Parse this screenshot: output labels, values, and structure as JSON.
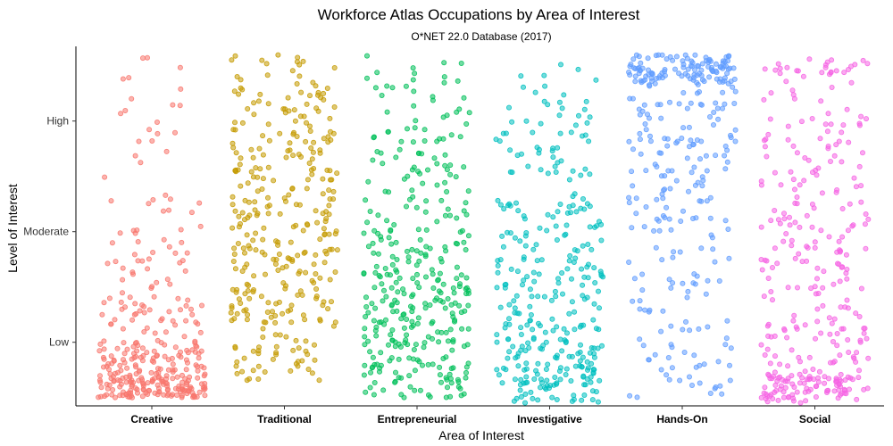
{
  "chart_data": {
    "type": "scatter",
    "subtype": "jitter-strip",
    "title": "Workforce Atlas Occupations by Area of Interest",
    "subtitle": "O*NET 22.0 Database (2017)",
    "xlabel": "Area of Interest",
    "ylabel": "Level of Interest",
    "categories": [
      "Creative",
      "Traditional",
      "Entrepreneurial",
      "Investigative",
      "Hands-On",
      "Social"
    ],
    "y_ticks": [
      {
        "label": "Low",
        "value": 2
      },
      {
        "label": "Moderate",
        "value": 4
      },
      {
        "label": "High",
        "value": 6
      }
    ],
    "ylim": [
      0.85,
      7.35
    ],
    "grid": false,
    "legend": "none",
    "colors": [
      "#F8766D",
      "#C49A00",
      "#00C05A",
      "#00C0C0",
      "#619CFF",
      "#F564E3"
    ],
    "series": [
      {
        "category": "Creative",
        "approx_point_count": 330,
        "density": [
          [
            1.0,
            1.4,
            0.4
          ],
          [
            1.4,
            2.0,
            0.27
          ],
          [
            2.0,
            2.8,
            0.13
          ],
          [
            2.8,
            4.2,
            0.11
          ],
          [
            4.2,
            7.2,
            0.09
          ]
        ]
      },
      {
        "category": "Traditional",
        "approx_point_count": 330,
        "density": [
          [
            1.3,
            2.4,
            0.15
          ],
          [
            2.4,
            3.4,
            0.2
          ],
          [
            3.4,
            4.4,
            0.22
          ],
          [
            4.4,
            5.8,
            0.25
          ],
          [
            5.8,
            7.2,
            0.18
          ]
        ]
      },
      {
        "category": "Entrepreneurial",
        "approx_point_count": 350,
        "density": [
          [
            1.0,
            2.0,
            0.23
          ],
          [
            2.0,
            3.3,
            0.35
          ],
          [
            3.3,
            4.5,
            0.18
          ],
          [
            4.5,
            6.0,
            0.16
          ],
          [
            6.0,
            7.2,
            0.08
          ]
        ]
      },
      {
        "category": "Investigative",
        "approx_point_count": 330,
        "density": [
          [
            0.9,
            2.0,
            0.35
          ],
          [
            2.0,
            3.5,
            0.3
          ],
          [
            3.5,
            4.6,
            0.17
          ],
          [
            4.6,
            6.0,
            0.12
          ],
          [
            6.0,
            7.2,
            0.06
          ]
        ]
      },
      {
        "category": "Hands-On",
        "approx_point_count": 320,
        "density": [
          [
            6.7,
            7.2,
            0.36
          ],
          [
            5.5,
            6.7,
            0.2
          ],
          [
            4.0,
            5.5,
            0.2
          ],
          [
            2.5,
            4.0,
            0.11
          ],
          [
            1.0,
            2.5,
            0.13
          ]
        ]
      },
      {
        "category": "Social",
        "approx_point_count": 330,
        "density": [
          [
            0.9,
            1.4,
            0.28
          ],
          [
            1.4,
            3.0,
            0.24
          ],
          [
            3.0,
            4.5,
            0.2
          ],
          [
            4.5,
            6.0,
            0.16
          ],
          [
            6.0,
            7.2,
            0.12
          ]
        ]
      }
    ]
  }
}
